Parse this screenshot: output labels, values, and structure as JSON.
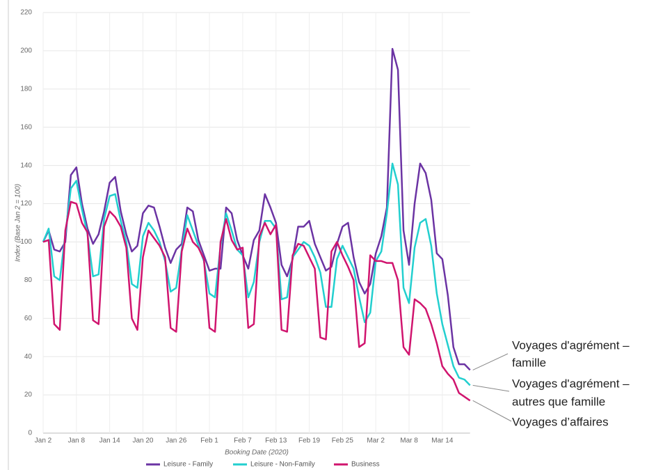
{
  "chart_data": {
    "type": "line",
    "y_label": "Index (Base Jan 2 = 100)",
    "x_label": "Booking Date (2020)",
    "categories": [
      "Jan 2",
      null,
      null,
      null,
      null,
      null,
      "Jan 8",
      null,
      null,
      null,
      null,
      null,
      "Jan 14",
      null,
      null,
      null,
      null,
      null,
      "Jan 20",
      null,
      null,
      null,
      null,
      null,
      "Jan 26",
      null,
      null,
      null,
      null,
      null,
      "Feb 1",
      null,
      null,
      null,
      null,
      null,
      "Feb 7",
      null,
      null,
      null,
      null,
      null,
      "Feb 13",
      null,
      null,
      null,
      null,
      null,
      "Feb 19",
      null,
      null,
      null,
      null,
      null,
      "Feb 25",
      null,
      null,
      null,
      null,
      null,
      "Mar 2",
      null,
      null,
      null,
      null,
      null,
      "Mar 8",
      null,
      null,
      null,
      null,
      null,
      "Mar 14",
      null,
      null,
      null,
      null,
      null
    ],
    "ylim": [
      0,
      220
    ],
    "yticks": [
      0,
      20,
      40,
      60,
      80,
      100,
      120,
      140,
      160,
      180,
      200,
      220
    ],
    "grid": true,
    "legend": "bottom",
    "series": [
      {
        "name": "Leisure - Family",
        "color": "#6b33a3",
        "values": [
          100,
          106,
          96,
          95,
          100,
          135,
          139,
          120,
          107,
          99,
          104,
          116,
          131,
          134,
          116,
          104,
          95,
          98,
          115,
          119,
          118,
          108,
          97,
          89,
          96,
          99,
          118,
          116,
          101,
          93,
          85,
          86,
          86,
          118,
          115,
          101,
          93,
          86,
          101,
          106,
          125,
          118,
          110,
          88,
          82,
          91,
          108,
          108,
          111,
          99,
          92,
          85,
          87,
          99,
          108,
          110,
          92,
          79,
          73,
          78,
          94,
          103,
          118,
          201,
          190,
          106,
          88,
          120,
          141,
          136,
          122,
          94,
          91,
          72,
          45,
          36,
          36,
          33
        ]
      },
      {
        "name": "Leisure - Non-Family",
        "color": "#22cfcf",
        "values": [
          100,
          107,
          82,
          80,
          104,
          128,
          132,
          117,
          104,
          82,
          83,
          112,
          124,
          125,
          111,
          100,
          78,
          76,
          103,
          110,
          106,
          100,
          90,
          74,
          76,
          96,
          114,
          106,
          98,
          90,
          73,
          71,
          98,
          115,
          106,
          96,
          93,
          71,
          79,
          100,
          111,
          111,
          107,
          70,
          71,
          92,
          96,
          100,
          98,
          92,
          84,
          66,
          66,
          91,
          98,
          92,
          86,
          71,
          58,
          63,
          90,
          95,
          115,
          141,
          130,
          76,
          68,
          97,
          110,
          112,
          98,
          73,
          57,
          46,
          35,
          29,
          28,
          25
        ]
      },
      {
        "name": "Business",
        "color": "#d0146e",
        "values": [
          100,
          101,
          57,
          54,
          106,
          121,
          120,
          110,
          105,
          59,
          57,
          108,
          116,
          113,
          108,
          97,
          60,
          54,
          92,
          106,
          102,
          98,
          92,
          55,
          53,
          95,
          107,
          100,
          97,
          91,
          55,
          53,
          100,
          112,
          101,
          96,
          97,
          55,
          57,
          103,
          110,
          104,
          109,
          54,
          53,
          93,
          99,
          98,
          92,
          86,
          50,
          49,
          95,
          100,
          93,
          87,
          80,
          45,
          47,
          93,
          90,
          90,
          89,
          89,
          80,
          45,
          41,
          70,
          68,
          65,
          57,
          47,
          35,
          31,
          28,
          21,
          19,
          17
        ]
      }
    ],
    "annotations": [
      {
        "lines": [
          "Voyages d'agrément –",
          "famille"
        ]
      },
      {
        "lines": [
          "Voyages d'agrément –",
          "autres que famille"
        ]
      },
      {
        "lines": [
          "Voyages d’affaires"
        ]
      }
    ]
  }
}
